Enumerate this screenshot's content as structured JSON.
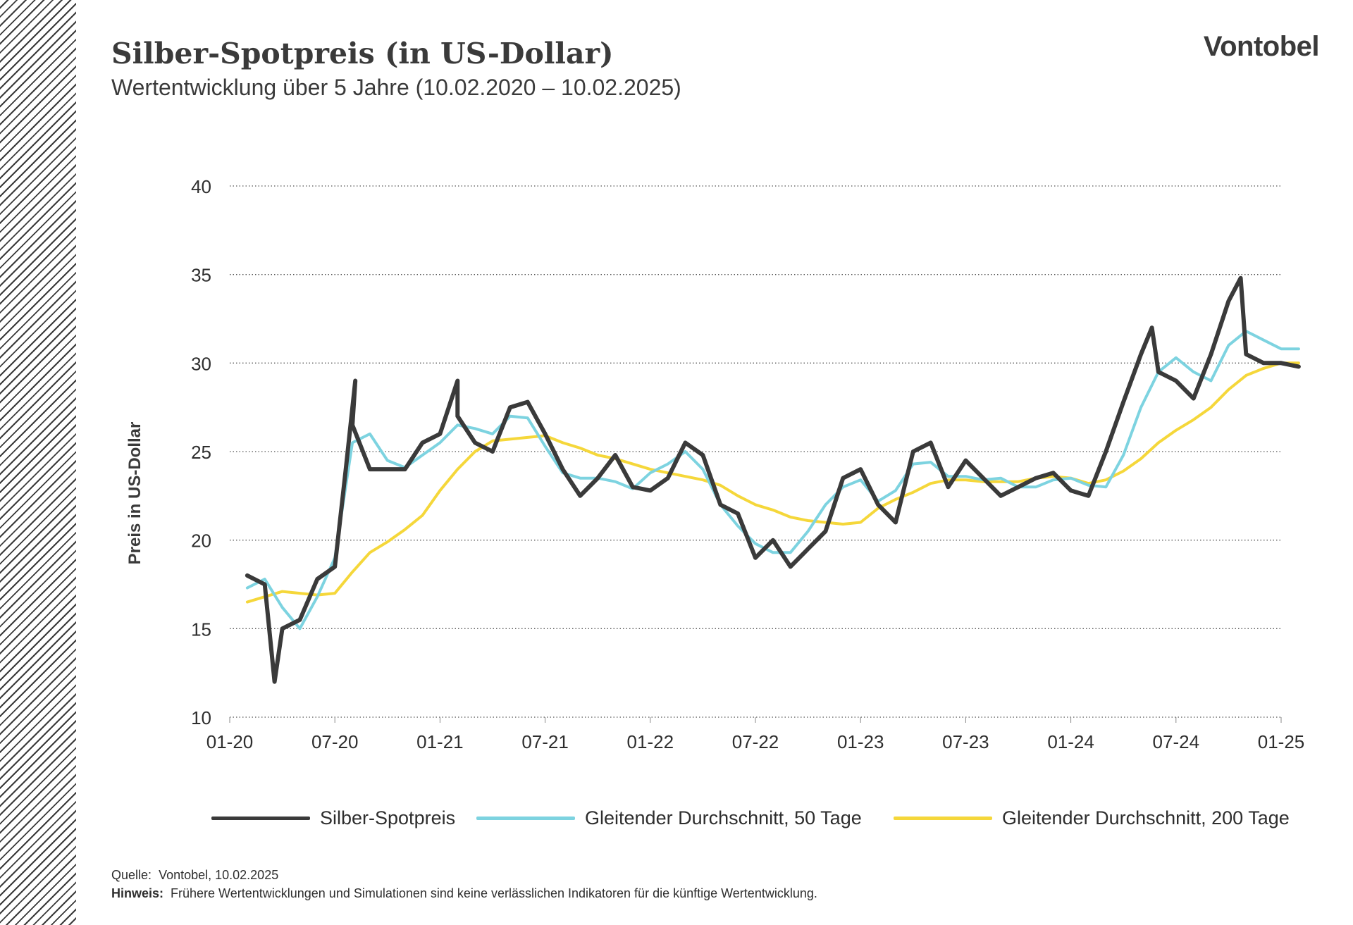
{
  "header": {
    "title": "Silber-Spotpreis (in US-Dollar)",
    "subtitle": "Wertentwicklung über 5 Jahre (10.02.2020 – 10.02.2025)",
    "brand": "Vontobel"
  },
  "footer": {
    "source_label": "Quelle:",
    "source_text": "Vontobel,  10.02.2025",
    "note_label": "Hinweis:",
    "note_text": "Frühere Wertentwicklungen und Simulationen sind keine verlässlichen Indikatoren für die künftige Wertentwicklung."
  },
  "chart_data": {
    "type": "line",
    "title": "Silber-Spotpreis (in US-Dollar)",
    "subtitle": "Wertentwicklung über 5 Jahre (10.02.2020 – 10.02.2025)",
    "ylabel": "Preis in US-Dollar",
    "xlabel": "",
    "ylim": [
      10,
      40
    ],
    "yticks": [
      10,
      15,
      20,
      25,
      30,
      35,
      40
    ],
    "xlim": [
      "2020-01",
      "2025-01"
    ],
    "xticks": [
      "01-20",
      "07-20",
      "01-21",
      "07-21",
      "01-22",
      "07-22",
      "01-23",
      "07-23",
      "01-24",
      "07-24",
      "01-25"
    ],
    "grid": "horizontal-dotted",
    "legend_position": "bottom",
    "colors": {
      "spot": "#3a3a3a",
      "ma50": "#7dd3e0",
      "ma200": "#f5d73a"
    },
    "series": [
      {
        "name": "Silber-Spotpreis",
        "x": [
          "2020-02",
          "2020-03",
          "2020-03-18",
          "2020-04",
          "2020-05",
          "2020-06",
          "2020-07",
          "2020-07-20",
          "2020-08-06",
          "2020-08",
          "2020-09",
          "2020-10",
          "2020-11",
          "2020-12",
          "2021-01",
          "2021-02-01",
          "2021-02",
          "2021-03",
          "2021-04",
          "2021-05",
          "2021-06",
          "2021-07",
          "2021-08",
          "2021-09",
          "2021-10",
          "2021-11",
          "2021-12",
          "2022-01",
          "2022-02",
          "2022-03",
          "2022-04",
          "2022-05",
          "2022-06",
          "2022-07",
          "2022-08",
          "2022-09",
          "2022-10",
          "2022-11",
          "2022-12",
          "2023-01",
          "2023-02",
          "2023-03",
          "2023-04",
          "2023-05",
          "2023-06",
          "2023-07",
          "2023-08",
          "2023-09",
          "2023-10",
          "2023-11",
          "2023-12",
          "2024-01",
          "2024-02",
          "2024-03",
          "2024-04",
          "2024-05",
          "2024-05-20",
          "2024-06",
          "2024-07",
          "2024-08",
          "2024-09",
          "2024-10",
          "2024-10-22",
          "2024-11",
          "2024-12",
          "2025-01",
          "2025-02"
        ],
        "values": [
          18.0,
          17.5,
          12.0,
          15.0,
          15.5,
          17.8,
          18.5,
          24.0,
          29.0,
          26.5,
          24.0,
          24.0,
          24.0,
          25.5,
          26.0,
          29.0,
          27.0,
          25.5,
          25.0,
          27.5,
          27.8,
          26.0,
          24.0,
          22.5,
          23.5,
          24.8,
          23.0,
          22.8,
          23.5,
          25.5,
          24.8,
          22.0,
          21.5,
          19.0,
          20.0,
          18.5,
          19.5,
          20.5,
          23.5,
          24.0,
          22.0,
          21.0,
          25.0,
          25.5,
          23.0,
          24.5,
          23.5,
          22.5,
          23.0,
          23.5,
          23.8,
          22.8,
          22.5,
          25.0,
          27.8,
          30.5,
          32.0,
          29.5,
          29.0,
          28.0,
          30.5,
          33.5,
          34.8,
          30.5,
          30.0,
          30.0,
          29.8
        ]
      },
      {
        "name": "Gleitender Durchschnitt, 50 Tage",
        "x": [
          "2020-02",
          "2020-03",
          "2020-04",
          "2020-05",
          "2020-06",
          "2020-07",
          "2020-08",
          "2020-09",
          "2020-10",
          "2020-11",
          "2020-12",
          "2021-01",
          "2021-02",
          "2021-03",
          "2021-04",
          "2021-05",
          "2021-06",
          "2021-07",
          "2021-08",
          "2021-09",
          "2021-10",
          "2021-11",
          "2021-12",
          "2022-01",
          "2022-02",
          "2022-03",
          "2022-04",
          "2022-05",
          "2022-06",
          "2022-07",
          "2022-08",
          "2022-09",
          "2022-10",
          "2022-11",
          "2022-12",
          "2023-01",
          "2023-02",
          "2023-03",
          "2023-04",
          "2023-05",
          "2023-06",
          "2023-07",
          "2023-08",
          "2023-09",
          "2023-10",
          "2023-11",
          "2023-12",
          "2024-01",
          "2024-02",
          "2024-03",
          "2024-04",
          "2024-05",
          "2024-06",
          "2024-07",
          "2024-08",
          "2024-09",
          "2024-10",
          "2024-11",
          "2024-12",
          "2025-01",
          "2025-02"
        ],
        "values": [
          17.3,
          17.8,
          16.2,
          15.0,
          16.8,
          19.0,
          25.5,
          26.0,
          24.5,
          24.1,
          24.8,
          25.5,
          26.5,
          26.3,
          26.0,
          27.0,
          26.9,
          25.3,
          23.8,
          23.5,
          23.5,
          23.3,
          22.9,
          23.8,
          24.3,
          25.0,
          24.0,
          22.0,
          20.8,
          19.8,
          19.3,
          19.3,
          20.5,
          22.0,
          23.0,
          23.4,
          22.2,
          22.8,
          24.3,
          24.4,
          23.6,
          23.6,
          23.4,
          23.5,
          23.0,
          23.0,
          23.4,
          23.5,
          23.1,
          23.0,
          24.8,
          27.5,
          29.5,
          30.3,
          29.5,
          29.0,
          31.0,
          31.8,
          31.3,
          30.8,
          30.8
        ]
      },
      {
        "name": "Gleitender Durchschnitt, 200 Tage",
        "x": [
          "2020-02",
          "2020-03",
          "2020-04",
          "2020-05",
          "2020-06",
          "2020-07",
          "2020-08",
          "2020-09",
          "2020-10",
          "2020-11",
          "2020-12",
          "2021-01",
          "2021-02",
          "2021-03",
          "2021-04",
          "2021-05",
          "2021-06",
          "2021-07",
          "2021-08",
          "2021-09",
          "2021-10",
          "2021-11",
          "2021-12",
          "2022-01",
          "2022-02",
          "2022-03",
          "2022-04",
          "2022-05",
          "2022-06",
          "2022-07",
          "2022-08",
          "2022-09",
          "2022-10",
          "2022-11",
          "2022-12",
          "2023-01",
          "2023-02",
          "2023-03",
          "2023-04",
          "2023-05",
          "2023-06",
          "2023-07",
          "2023-08",
          "2023-09",
          "2023-10",
          "2023-11",
          "2023-12",
          "2024-01",
          "2024-02",
          "2024-03",
          "2024-04",
          "2024-05",
          "2024-06",
          "2024-07",
          "2024-08",
          "2024-09",
          "2024-10",
          "2024-11",
          "2024-12",
          "2025-01",
          "2025-02"
        ],
        "values": [
          16.5,
          16.8,
          17.1,
          17.0,
          16.9,
          17.0,
          18.2,
          19.3,
          19.9,
          20.6,
          21.4,
          22.8,
          24.0,
          25.0,
          25.6,
          25.7,
          25.8,
          25.9,
          25.5,
          25.2,
          24.8,
          24.6,
          24.3,
          24.0,
          23.8,
          23.6,
          23.4,
          23.1,
          22.5,
          22.0,
          21.7,
          21.3,
          21.1,
          21.0,
          20.9,
          21.0,
          21.8,
          22.3,
          22.7,
          23.2,
          23.4,
          23.4,
          23.3,
          23.3,
          23.3,
          23.5,
          23.6,
          23.5,
          23.2,
          23.4,
          23.9,
          24.6,
          25.5,
          26.2,
          26.8,
          27.5,
          28.5,
          29.3,
          29.7,
          30.0,
          30.0
        ]
      }
    ]
  },
  "legend": {
    "items": [
      {
        "label": "Silber-Spotpreis",
        "color": "#3a3a3a"
      },
      {
        "label": "Gleitender Durchschnitt, 50 Tage",
        "color": "#7dd3e0"
      },
      {
        "label": "Gleitender Durchschnitt, 200 Tage",
        "color": "#f5d73a"
      }
    ]
  }
}
